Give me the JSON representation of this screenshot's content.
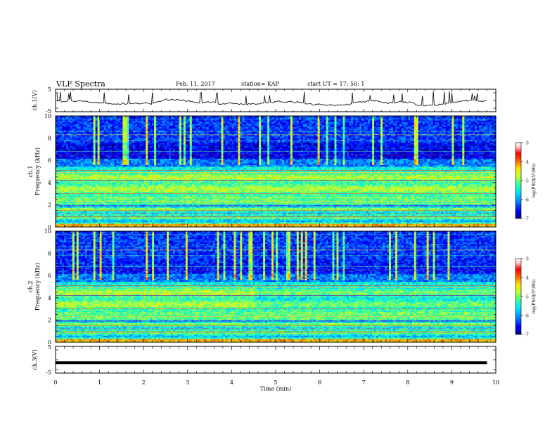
{
  "header": {
    "title": "VLF Spectra",
    "date": "Feb. 11, 2017",
    "station": "station= KAP",
    "start": "start UT =  17: 50: 1"
  },
  "colors": {
    "trace": "#000000",
    "colormap": [
      "#000080",
      "#0000ff",
      "#0080ff",
      "#00e0ff",
      "#40ff90",
      "#c0ff30",
      "#ffe000",
      "#ff6000",
      "#ff0000",
      "#ffc0c0",
      "#ffffff"
    ]
  },
  "chart_data": [
    {
      "type": "line",
      "panel": "ch1-waveform",
      "ylabel": "ch.1(V)",
      "ylim": [
        -5,
        5
      ],
      "yticks": [
        "5",
        "-5"
      ],
      "xlim": [
        0,
        10
      ]
    },
    {
      "type": "heatmap",
      "panel": "ch1-spectrogram",
      "ylabel": "ch.1\nFrequency (kHz)",
      "ylim": [
        0,
        10
      ],
      "yticks": [
        "0",
        "2",
        "4",
        "6",
        "8",
        "10"
      ],
      "xlim": [
        0,
        10
      ],
      "colorbar": {
        "label": "log(PSD)(V²/Hz)",
        "range": [
          -7,
          -3
        ],
        "ticks": [
          "-3",
          "-4",
          "-5",
          "-6",
          "-7"
        ]
      }
    },
    {
      "type": "heatmap",
      "panel": "ch2-spectrogram",
      "ylabel": "ch.2\nFrequency (kHz)",
      "ylim": [
        0,
        10
      ],
      "yticks": [
        "0",
        "2",
        "4",
        "6",
        "8",
        "10"
      ],
      "xlim": [
        0,
        10
      ],
      "colorbar": {
        "label": "log(PSD)(V²/Hz)",
        "range": [
          -7,
          -3
        ],
        "ticks": [
          "-3",
          "-4",
          "-5",
          "-6",
          "-7"
        ]
      }
    },
    {
      "type": "line",
      "panel": "ch3-waveform",
      "ylabel": "ch.3(V)",
      "ylim": [
        -5,
        5
      ],
      "yticks": [
        "5",
        "-5"
      ],
      "xlim": [
        0,
        10
      ],
      "x": [
        0,
        9.8
      ],
      "y": [
        -1.5,
        -1.5
      ]
    }
  ],
  "xaxis": {
    "label": "Time (min)",
    "ticks": [
      "0",
      "1",
      "2",
      "3",
      "4",
      "5",
      "6",
      "7",
      "8",
      "9",
      "10"
    ]
  }
}
